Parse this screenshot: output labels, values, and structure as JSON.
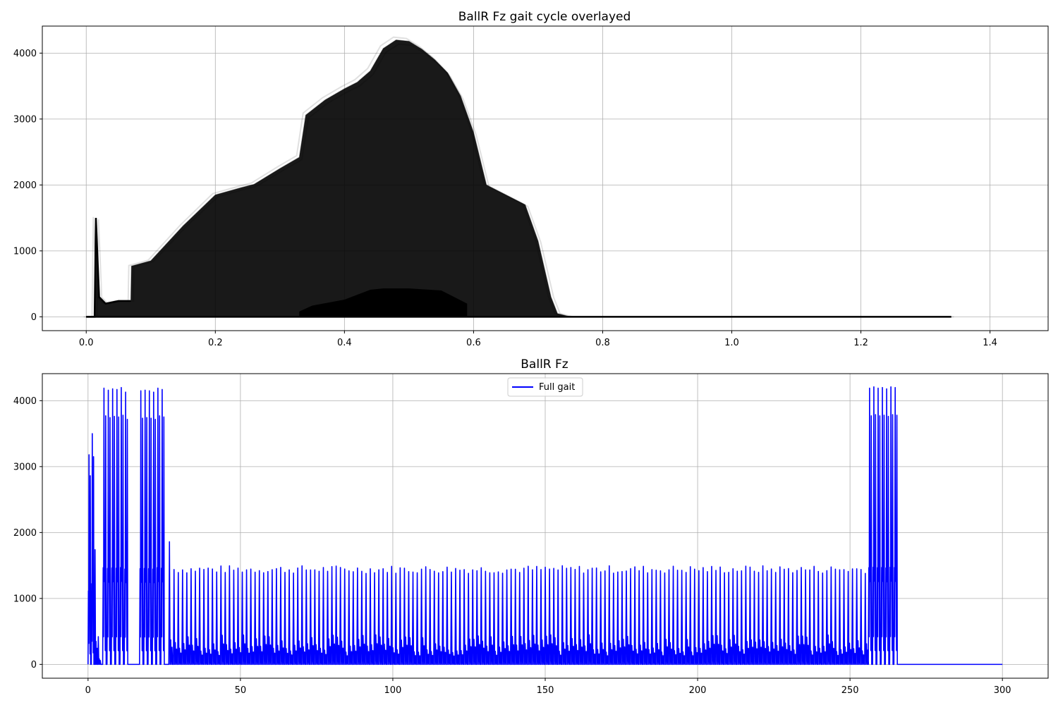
{
  "chart_data": [
    {
      "type": "line",
      "title": "BallR Fz gait cycle overlayed",
      "xlabel": "",
      "ylabel": "",
      "xlim": [
        -0.068,
        1.49
      ],
      "ylim": [
        -210,
        4410
      ],
      "x_ticks": [
        0.0,
        0.2,
        0.4,
        0.6,
        0.8,
        1.0,
        1.2,
        1.4
      ],
      "x_tick_labels": [
        "0.0",
        "0.2",
        "0.4",
        "0.6",
        "0.8",
        "1.0",
        "1.2",
        "1.4"
      ],
      "y_ticks": [
        0,
        1000,
        2000,
        3000,
        4000
      ],
      "y_tick_labels": [
        "0",
        "1000",
        "2000",
        "3000",
        "4000"
      ],
      "grid": true,
      "series_color": "#000000",
      "series": [
        {
          "style": "overlay-envelope-upper",
          "x": [
            0.0,
            0.013,
            0.015,
            0.02,
            0.03,
            0.05,
            0.069,
            0.07,
            0.1,
            0.15,
            0.2,
            0.24,
            0.26,
            0.3,
            0.33,
            0.34,
            0.37,
            0.4,
            0.42,
            0.44,
            0.46,
            0.48,
            0.5,
            0.52,
            0.54,
            0.56,
            0.58,
            0.6,
            0.62,
            0.65,
            0.68,
            0.7,
            0.72,
            0.73,
            0.75,
            1.34
          ],
          "y": [
            0,
            0,
            1500,
            300,
            200,
            240,
            240,
            770,
            850,
            1380,
            1850,
            1960,
            2010,
            2250,
            2420,
            3060,
            3290,
            3460,
            3560,
            3730,
            4070,
            4200,
            4180,
            4060,
            3900,
            3700,
            3350,
            2800,
            2000,
            1850,
            1700,
            1150,
            300,
            50,
            0,
            0
          ]
        },
        {
          "style": "overlay-inner-band",
          "x": [
            0.33,
            0.35,
            0.4,
            0.44,
            0.46,
            0.5,
            0.55,
            0.58,
            0.59
          ],
          "y": [
            80,
            170,
            260,
            410,
            430,
            430,
            400,
            250,
            200
          ]
        }
      ]
    },
    {
      "type": "line",
      "title": "BallR Fz",
      "xlabel": "",
      "ylabel": "",
      "xlim": [
        -15,
        315
      ],
      "ylim": [
        -210,
        4410
      ],
      "x_ticks": [
        0,
        50,
        100,
        150,
        200,
        250,
        300
      ],
      "x_tick_labels": [
        "0",
        "50",
        "100",
        "150",
        "200",
        "250",
        "300"
      ],
      "y_ticks": [
        0,
        1000,
        2000,
        3000,
        4000
      ],
      "y_tick_labels": [
        "0",
        "1000",
        "2000",
        "3000",
        "4000"
      ],
      "grid": true,
      "legend": "upper center",
      "series": [
        {
          "name": "Full gait",
          "color": "#0000ff",
          "segments": [
            {
              "x_start": 0,
              "x_end": 3.2,
              "step": 1.07,
              "peaks": [
                3180,
                3500,
                1740,
                420
              ]
            },
            {
              "x_start": 4.8,
              "x_end": 13.3,
              "step": 1.42,
              "peaks": [
                4190,
                4160,
                4180,
                4170,
                4200,
                4130
              ]
            },
            {
              "x_start": 16.9,
              "x_end": 25.3,
              "step": 1.4,
              "peaks": [
                4150,
                4160,
                4150,
                4130,
                4190,
                4170
              ]
            },
            {
              "x_start": 26.5,
              "x_end": 26.5,
              "step": 1.4,
              "peaks": [
                1860
              ]
            },
            {
              "x_start": 28,
              "x_end": 255,
              "step": 1.4,
              "peak_range": [
                1380,
                1500
              ],
              "low_range": [
                180,
                450
              ]
            },
            {
              "x_start": 256,
              "x_end": 299.5,
              "step": 1.4,
              "peaks": [
                4190,
                4210,
                4190,
                4200,
                4180,
                4210,
                4200
              ]
            }
          ]
        }
      ]
    }
  ]
}
